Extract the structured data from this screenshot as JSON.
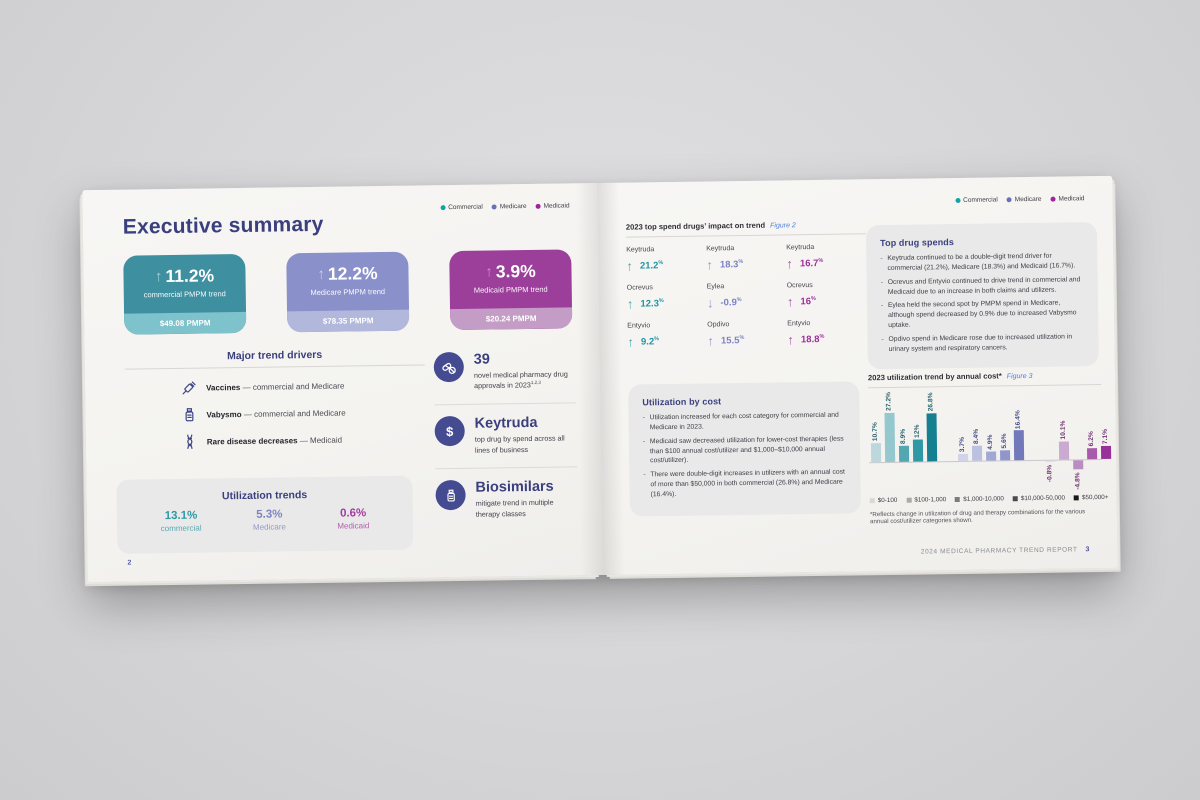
{
  "legend": {
    "items": [
      {
        "label": "Commercial",
        "color": "#13a1aa"
      },
      {
        "label": "Medicare",
        "color": "#6971b8"
      },
      {
        "label": "Medicaid",
        "color": "#a0229c"
      }
    ]
  },
  "left_page": {
    "page_number": "2",
    "title": "Executive summary",
    "stat_cards": [
      {
        "value": "11.2%",
        "label": "commercial PMPM trend",
        "pmpm": "$49.08 PMPM",
        "bg": "#3e8fa0",
        "band": "#7ec2cc",
        "arrow": "#a5d6dc"
      },
      {
        "value": "12.2%",
        "label": "Medicare PMPM trend",
        "pmpm": "$78.35 PMPM",
        "bg": "#8a90c9",
        "band": "#b2b7dc",
        "arrow": "#cdd1ea"
      },
      {
        "value": "3.9%",
        "label": "Medicaid PMPM trend",
        "pmpm": "$20.24 PMPM",
        "bg": "#9c3f9a",
        "band": "#c49dc6",
        "arrow": "#c791c5"
      }
    ],
    "trend_drivers": {
      "title": "Major trend drivers",
      "items": [
        {
          "icon": "syringe-icon",
          "name": "Vaccines",
          "rest": "— commercial and Medicare"
        },
        {
          "icon": "vial-icon",
          "name": "Vabysmo",
          "rest": "— commercial and Medicare"
        },
        {
          "icon": "dna-icon",
          "name": "Rare disease decreases",
          "rest": "— Medicaid"
        }
      ]
    },
    "utilization_trends": {
      "title": "Utilization trends",
      "stats": [
        {
          "value": "13.1%",
          "label": "commercial",
          "color": "#2f9aa5"
        },
        {
          "value": "5.3%",
          "label": "Medicare",
          "color": "#7e85c3"
        },
        {
          "value": "0.6%",
          "label": "Medicaid",
          "color": "#a43ba0"
        }
      ]
    },
    "highlights": [
      {
        "icon": "pills-icon",
        "title": "39",
        "desc": "novel medical pharmacy drug approvals in 2023",
        "sup": "1,2,3"
      },
      {
        "icon": "dollar-icon",
        "title": "Keytruda",
        "desc": "top drug by spend across all lines of business",
        "sup": ""
      },
      {
        "icon": "bottle-icon",
        "title": "Biosimilars",
        "desc": "mitigate trend in multiple therapy classes",
        "sup": ""
      }
    ]
  },
  "right_page": {
    "page_number": "3",
    "footer": "2024 MEDICAL PHARMACY TREND REPORT",
    "figure2": {
      "title": "2023 top spend drugs’ impact on trend",
      "figure_label": "Figure 2",
      "columns": [
        {
          "lob": "Commercial",
          "arrow_color": "#45aab3",
          "value_color": "#1f97a3",
          "entries": [
            {
              "drug": "Keytruda",
              "dir": "up",
              "value": "21.2"
            },
            {
              "drug": "Ocrevus",
              "dir": "up",
              "value": "12.3"
            },
            {
              "drug": "Entyvio",
              "dir": "up",
              "value": "9.2"
            }
          ]
        },
        {
          "lob": "Medicare",
          "arrow_color": "#9298cf",
          "value_color": "#7b82c4",
          "entries": [
            {
              "drug": "Keytruda",
              "dir": "up",
              "value": "18.3"
            },
            {
              "drug": "Eylea",
              "dir": "down",
              "value": "-0.9"
            },
            {
              "drug": "Opdivo",
              "dir": "up",
              "value": "15.5"
            }
          ]
        },
        {
          "lob": "Medicaid",
          "arrow_color": "#a553a8",
          "value_color": "#9c2f9c",
          "entries": [
            {
              "drug": "Keytruda",
              "dir": "up",
              "value": "16.7"
            },
            {
              "drug": "Ocrevus",
              "dir": "up",
              "value": "16"
            },
            {
              "drug": "Entyvio",
              "dir": "up",
              "value": "18.8"
            }
          ]
        }
      ]
    },
    "top_drug_spends": {
      "title": "Top drug spends",
      "bullets": [
        "Keytruda continued to be a double-digit trend driver for commercial (21.2%), Medicare (18.3%) and Medicaid (16.7%).",
        "Ocrevus and Entyvio continued to drive trend in commercial and Medicaid due to an increase in both claims and utilizers.",
        "Eylea held the second spot by PMPM spend in Medicare, although spend decreased by 0.9% due to increased Vabysmo uptake.",
        "Opdivo spend in Medicare rose due to increased utilization in urinary system and respiratory cancers."
      ]
    },
    "utilization_by_cost": {
      "title": "Utilization by cost",
      "bullets": [
        "Utilization increased for each cost category for commercial and Medicare in 2023.",
        "Medicaid saw decreased utilization for lower-cost therapies (less than $100 annual cost/utilizer and $1,000–$10,000 annual cost/utilizer).",
        "There were double-digit increases in utilizers with an annual cost of more than $50,000 in both commercial (26.8%) and Medicare (16.4%)."
      ]
    },
    "figure3": {
      "title": "2023 utilization trend by annual cost*",
      "figure_label": "Figure 3",
      "footnote": "*Reflects change in utilization of drug and therapy combinations for the various annual cost/utilizer categories shown."
    }
  },
  "chart_data": {
    "type": "bar",
    "title": "2023 utilization trend by annual cost*",
    "categories": [
      "$0-100",
      "$100-1,000",
      "$1,000-10,000",
      "$10,000-50,000",
      "$50,000+"
    ],
    "series": [
      {
        "name": "Commercial",
        "values": [
          10.7,
          27.2,
          8.9,
          12,
          26.8
        ],
        "labels": [
          "10.7%",
          "27.2%",
          "8.9%",
          "12%",
          "26.8%"
        ],
        "colors": [
          "#bcd8dc",
          "#94c8ce",
          "#52a7b1",
          "#2f98a4",
          "#15808f"
        ],
        "label_color": "#245f6b"
      },
      {
        "name": "Medicare",
        "values": [
          3.7,
          8.4,
          4.9,
          5.6,
          16.4
        ],
        "labels": [
          "3.7%",
          "8.4%",
          "4.9%",
          "5.6%",
          "16.4%"
        ],
        "colors": [
          "#d0d3ea",
          "#bcc0e1",
          "#a2a8d4",
          "#9096ca",
          "#7179bb"
        ],
        "label_color": "#434a86"
      },
      {
        "name": "Medicaid",
        "values": [
          -0.8,
          10.1,
          -4.8,
          6.2,
          7.1
        ],
        "labels": [
          "-0.8%",
          "10.1%",
          "-4.8%",
          "6.2%",
          "7.1%"
        ],
        "colors": [
          "#e3d3e4",
          "#cbaad2",
          "#b88fc0",
          "#a85bab",
          "#992f9a"
        ],
        "label_color": "#6e2f70"
      }
    ],
    "legend_colors": [
      "#d8d8d8",
      "#aaaaaa",
      "#7b7b7f",
      "#4a4a4e",
      "#19191b"
    ],
    "ylim": [
      -6,
      28
    ],
    "grid": false,
    "legend_position": "bottom"
  }
}
